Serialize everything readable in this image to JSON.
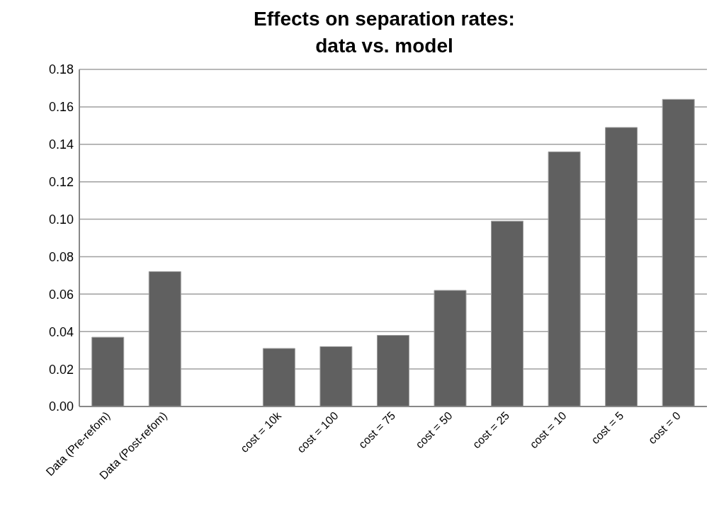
{
  "chart_data": {
    "type": "bar",
    "title": "Effects on separation rates:\ndata vs. model",
    "categories": [
      "Data (Pre-refom)",
      "Data (Post-refom)",
      null,
      "cost = 10k",
      "cost = 100",
      "cost = 75",
      "cost = 50",
      "cost = 25",
      "cost = 10",
      "cost = 5",
      "cost = 0"
    ],
    "values": [
      0.037,
      0.072,
      null,
      0.031,
      0.032,
      0.038,
      0.062,
      0.099,
      0.136,
      0.149,
      0.164
    ],
    "color": "#606060",
    "ylim": [
      0,
      0.18
    ],
    "yticks": [
      {
        "value": 0,
        "label": "0.00"
      },
      {
        "value": 0.02,
        "label": "0.02"
      },
      {
        "value": 0.04,
        "label": "0.04"
      },
      {
        "value": 0.06,
        "label": "0.06"
      },
      {
        "value": 0.08,
        "label": "0.08"
      },
      {
        "value": 0.1,
        "label": "0.10"
      },
      {
        "value": 0.12,
        "label": "0.12"
      },
      {
        "value": 0.14,
        "label": "0.14"
      },
      {
        "value": 0.16,
        "label": "0.16"
      },
      {
        "value": 0.18,
        "label": "0.18"
      }
    ],
    "grid": "y",
    "legend": false
  }
}
